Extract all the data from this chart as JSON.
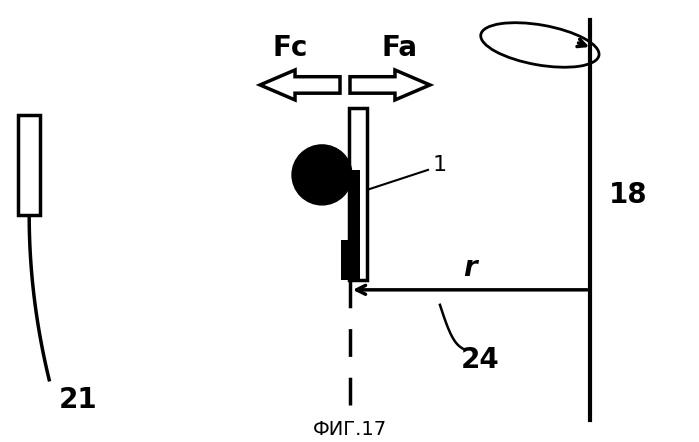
{
  "bg_color": "#ffffff",
  "fig_label": "ФИГ.17",
  "label_1": "1",
  "label_18": "18",
  "label_21": "21",
  "label_24": "24",
  "label_Fc": "Fc",
  "label_Fa": "Fa",
  "label_r": "r",
  "lw": 2.5
}
